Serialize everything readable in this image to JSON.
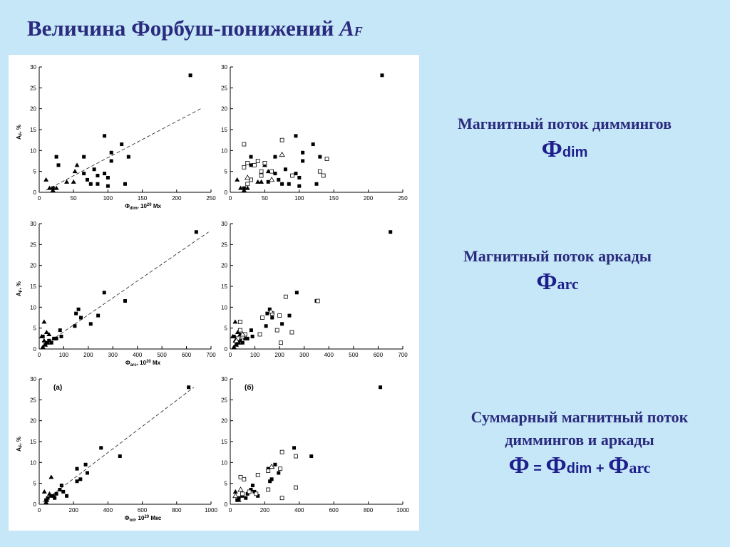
{
  "title": {
    "main": "Величина Форбуш-понижений ",
    "af": "A",
    "af_sub": "F"
  },
  "captions": [
    {
      "text": "Магнитный поток диммингов",
      "formula_phi": "Ф",
      "formula_sub": "dim"
    },
    {
      "text": "Магнитный поток аркады",
      "formula_phi": "Ф",
      "formula_sub": "arc"
    },
    {
      "text_line1": "Суммарный магнитный поток",
      "text_line2": "диммингов и аркады",
      "formula": {
        "lhs": "Ф",
        "eq": " = ",
        "t1": "Ф",
        "t1_sub": "dim",
        "plus": " + ",
        "t2": "Ф",
        "t2_sub": "arc"
      }
    }
  ],
  "chart_data": [
    {
      "type": "scatter",
      "row": 1,
      "col": 1,
      "ylabel": "A",
      "ylabel_sub": "F",
      "ylabel_unit": ", %",
      "xlabel": "Ф",
      "xlabel_sub": "dim",
      "xlabel_unit": ", 10",
      "xlabel_exp": "20",
      "xlabel_tail": " Мх",
      "xlim": [
        0,
        250
      ],
      "ylim": [
        0,
        30
      ],
      "xticks": [
        0,
        50,
        100,
        150,
        200,
        250
      ],
      "yticks": [
        0,
        5,
        10,
        15,
        20,
        25,
        30
      ],
      "trend": [
        [
          10,
          0.5
        ],
        [
          235,
          20
        ]
      ],
      "series": [
        {
          "marker": "square-filled",
          "points": [
            [
              220,
              28
            ],
            [
              95,
              13.5
            ],
            [
              120,
              11.5
            ],
            [
              105,
              9.5
            ],
            [
              25,
              8.5
            ],
            [
              65,
              8.5
            ],
            [
              130,
              8.5
            ],
            [
              105,
              7.5
            ],
            [
              28,
              6.5
            ],
            [
              80,
              5.5
            ],
            [
              95,
              4.5
            ],
            [
              65,
              4.5
            ],
            [
              85,
              4
            ],
            [
              100,
              3.5
            ],
            [
              70,
              3
            ],
            [
              85,
              2
            ],
            [
              75,
              2
            ],
            [
              125,
              2
            ],
            [
              100,
              1.5
            ],
            [
              20,
              1
            ]
          ]
        },
        {
          "marker": "triangle-filled",
          "points": [
            [
              10,
              3
            ],
            [
              55,
              6.5
            ],
            [
              52,
              5
            ],
            [
              40,
              2.5
            ],
            [
              50,
              2.5
            ],
            [
              15,
              1
            ],
            [
              25,
              1
            ],
            [
              20,
              0.5
            ]
          ]
        }
      ]
    },
    {
      "type": "scatter",
      "row": 1,
      "col": 2,
      "ylabel": "",
      "xlabel": "",
      "xlim": [
        0,
        250
      ],
      "ylim": [
        0,
        30
      ],
      "xticks": [
        0,
        50,
        100,
        150,
        200,
        250
      ],
      "yticks": [
        0,
        5,
        10,
        15,
        20,
        25,
        30
      ],
      "series": [
        {
          "marker": "square-filled",
          "points": [
            [
              220,
              28
            ],
            [
              95,
              13.5
            ],
            [
              120,
              11.5
            ],
            [
              105,
              9.5
            ],
            [
              30,
              8.5
            ],
            [
              65,
              8.5
            ],
            [
              130,
              8.5
            ],
            [
              105,
              7.5
            ],
            [
              30,
              6.5
            ],
            [
              80,
              5.5
            ],
            [
              95,
              4.5
            ],
            [
              65,
              4.5
            ],
            [
              90,
              4
            ],
            [
              100,
              3.5
            ],
            [
              70,
              3
            ],
            [
              85,
              2
            ],
            [
              75,
              2
            ],
            [
              125,
              2
            ],
            [
              100,
              1.5
            ],
            [
              20,
              1
            ],
            [
              55,
              2.5
            ]
          ]
        },
        {
          "marker": "triangle-filled",
          "points": [
            [
              10,
              3
            ],
            [
              50,
              6.5
            ],
            [
              55,
              5
            ],
            [
              40,
              2.5
            ],
            [
              45,
              2.5
            ],
            [
              15,
              1
            ],
            [
              25,
              1
            ],
            [
              20,
              0.5
            ]
          ]
        },
        {
          "marker": "square-open",
          "points": [
            [
              20,
              11.5
            ],
            [
              75,
              12.5
            ],
            [
              40,
              7.5
            ],
            [
              25,
              7
            ],
            [
              50,
              7
            ],
            [
              35,
              6.5
            ],
            [
              20,
              6
            ],
            [
              45,
              5
            ],
            [
              60,
              5
            ],
            [
              45,
              4
            ],
            [
              90,
              4
            ],
            [
              130,
              5
            ],
            [
              135,
              4
            ],
            [
              140,
              8
            ],
            [
              30,
              3
            ],
            [
              25,
              2
            ]
          ]
        },
        {
          "marker": "triangle-open",
          "points": [
            [
              75,
              9
            ],
            [
              25,
              3.5
            ],
            [
              60,
              3
            ]
          ]
        }
      ]
    },
    {
      "type": "scatter",
      "row": 2,
      "col": 1,
      "ylabel": "A",
      "ylabel_sub": "F",
      "ylabel_unit": ", %",
      "xlabel": "Ф",
      "xlabel_sub": "arc",
      "xlabel_unit": ", 10",
      "xlabel_exp": "20",
      "xlabel_tail": " Мх",
      "xlim": [
        0,
        700
      ],
      "ylim": [
        0,
        30
      ],
      "xticks": [
        0,
        100,
        200,
        300,
        400,
        500,
        600,
        700
      ],
      "yticks": [
        0,
        5,
        10,
        15,
        20,
        25,
        30
      ],
      "trend": [
        [
          10,
          0.5
        ],
        [
          690,
          28
        ]
      ],
      "series": [
        {
          "marker": "square-filled",
          "points": [
            [
              640,
              28
            ],
            [
              265,
              13.5
            ],
            [
              350,
              11.5
            ],
            [
              160,
              9.5
            ],
            [
              150,
              8.5
            ],
            [
              240,
              8
            ],
            [
              170,
              7.5
            ],
            [
              210,
              6
            ],
            [
              145,
              5.5
            ],
            [
              85,
              4.5
            ],
            [
              90,
              3
            ],
            [
              60,
              2.5
            ],
            [
              40,
              2
            ],
            [
              30,
              1.5
            ],
            [
              25,
              1
            ],
            [
              50,
              1.5
            ],
            [
              70,
              2.5
            ],
            [
              15,
              3
            ]
          ]
        },
        {
          "marker": "triangle-filled",
          "points": [
            [
              20,
              6.5
            ],
            [
              30,
              4
            ],
            [
              40,
              3.5
            ],
            [
              10,
              3
            ],
            [
              20,
              2
            ],
            [
              35,
              1.5
            ],
            [
              25,
              1
            ],
            [
              15,
              0.5
            ]
          ]
        }
      ]
    },
    {
      "type": "scatter",
      "row": 2,
      "col": 2,
      "ylabel": "",
      "xlabel": "",
      "xlim": [
        0,
        700
      ],
      "ylim": [
        0,
        30
      ],
      "xticks": [
        0,
        100,
        200,
        300,
        400,
        500,
        600,
        700
      ],
      "yticks": [
        0,
        5,
        10,
        15,
        20,
        25,
        30
      ],
      "series": [
        {
          "marker": "square-filled",
          "points": [
            [
              650,
              28
            ],
            [
              270,
              13.5
            ],
            [
              350,
              11.5
            ],
            [
              160,
              9.5
            ],
            [
              150,
              8.5
            ],
            [
              240,
              8
            ],
            [
              170,
              7.5
            ],
            [
              210,
              6
            ],
            [
              145,
              5.5
            ],
            [
              85,
              4.5
            ],
            [
              90,
              3
            ],
            [
              60,
              2.5
            ],
            [
              40,
              2
            ],
            [
              30,
              1.5
            ],
            [
              25,
              1
            ],
            [
              50,
              1.5
            ],
            [
              70,
              2.5
            ],
            [
              15,
              3
            ]
          ]
        },
        {
          "marker": "triangle-filled",
          "points": [
            [
              20,
              6.5
            ],
            [
              30,
              4
            ],
            [
              40,
              3.5
            ],
            [
              10,
              3
            ],
            [
              20,
              2
            ],
            [
              35,
              1.5
            ],
            [
              25,
              1
            ],
            [
              15,
              0.5
            ]
          ]
        },
        {
          "marker": "square-open",
          "points": [
            [
              225,
              12.5
            ],
            [
              355,
              11.5
            ],
            [
              200,
              8
            ],
            [
              170,
              8.5
            ],
            [
              40,
              6.5
            ],
            [
              130,
              7.5
            ],
            [
              190,
              4.5
            ],
            [
              250,
              4
            ],
            [
              205,
              1.5
            ],
            [
              120,
              3.5
            ],
            [
              40,
              4.5
            ],
            [
              60,
              3.5
            ],
            [
              30,
              2.5
            ],
            [
              50,
              3
            ]
          ]
        },
        {
          "marker": "triangle-open",
          "points": [
            [
              165,
              9
            ],
            [
              50,
              3.5
            ],
            [
              25,
              2
            ]
          ]
        }
      ]
    },
    {
      "type": "scatter",
      "row": 3,
      "col": 1,
      "panel_label": "(а)",
      "ylabel": "A",
      "ylabel_sub": "F",
      "ylabel_unit": ", %",
      "xlabel": "Ф",
      "xlabel_sub": "tot",
      "xlabel_unit": ", 10",
      "xlabel_exp": "20",
      "xlabel_tail": " Мкс",
      "xlim": [
        0,
        1000
      ],
      "ylim": [
        0,
        30
      ],
      "xticks": [
        0,
        200,
        400,
        600,
        800,
        1000
      ],
      "yticks": [
        0,
        5,
        10,
        15,
        20,
        25,
        30
      ],
      "trend": [
        [
          20,
          0.5
        ],
        [
          900,
          28
        ]
      ],
      "series": [
        {
          "marker": "square-filled",
          "points": [
            [
              870,
              28
            ],
            [
              360,
              13.5
            ],
            [
              470,
              11.5
            ],
            [
              270,
              9.5
            ],
            [
              220,
              8.5
            ],
            [
              280,
              7.5
            ],
            [
              240,
              6
            ],
            [
              220,
              5.5
            ],
            [
              130,
              4.5
            ],
            [
              140,
              3
            ],
            [
              100,
              2.5
            ],
            [
              70,
              2
            ],
            [
              50,
              1.5
            ],
            [
              40,
              1
            ],
            [
              90,
              1.5
            ],
            [
              120,
              3.5
            ],
            [
              160,
              2
            ]
          ]
        },
        {
          "marker": "triangle-filled",
          "points": [
            [
              70,
              6.5
            ],
            [
              30,
              3
            ],
            [
              60,
              2.5
            ],
            [
              85,
              2
            ],
            [
              45,
              1
            ],
            [
              40,
              0.5
            ]
          ]
        }
      ]
    },
    {
      "type": "scatter",
      "row": 3,
      "col": 2,
      "panel_label": "(б)",
      "ylabel": "",
      "xlabel": "",
      "xlim": [
        0,
        1000
      ],
      "ylim": [
        0,
        30
      ],
      "xticks": [
        0,
        200,
        400,
        600,
        800,
        1000
      ],
      "yticks": [
        0,
        5,
        10,
        15,
        20,
        25,
        30
      ],
      "series": [
        {
          "marker": "square-filled",
          "points": [
            [
              870,
              28
            ],
            [
              370,
              13.5
            ],
            [
              470,
              11.5
            ],
            [
              260,
              9.5
            ],
            [
              220,
              8.5
            ],
            [
              280,
              7.5
            ],
            [
              240,
              6
            ],
            [
              230,
              5.5
            ],
            [
              130,
              4.5
            ],
            [
              140,
              3
            ],
            [
              100,
              2.5
            ],
            [
              70,
              2
            ],
            [
              50,
              1.5
            ],
            [
              40,
              1
            ],
            [
              90,
              1.5
            ],
            [
              120,
              3.5
            ],
            [
              160,
              2
            ]
          ]
        },
        {
          "marker": "square-open",
          "points": [
            [
              300,
              12.5
            ],
            [
              380,
              11.5
            ],
            [
              220,
              8
            ],
            [
              160,
              7
            ],
            [
              60,
              6.5
            ],
            [
              80,
              6
            ],
            [
              290,
              8.5
            ],
            [
              220,
              3.5
            ],
            [
              380,
              4
            ],
            [
              300,
              1.5
            ],
            [
              110,
              3
            ],
            [
              70,
              2.5
            ],
            [
              150,
              2.5
            ]
          ]
        },
        {
          "marker": "triangle-open",
          "points": [
            [
              240,
              9
            ],
            [
              60,
              3.5
            ],
            [
              30,
              2
            ]
          ]
        },
        {
          "marker": "triangle-filled",
          "points": [
            [
              30,
              3
            ],
            [
              50,
              1
            ]
          ]
        }
      ]
    }
  ]
}
